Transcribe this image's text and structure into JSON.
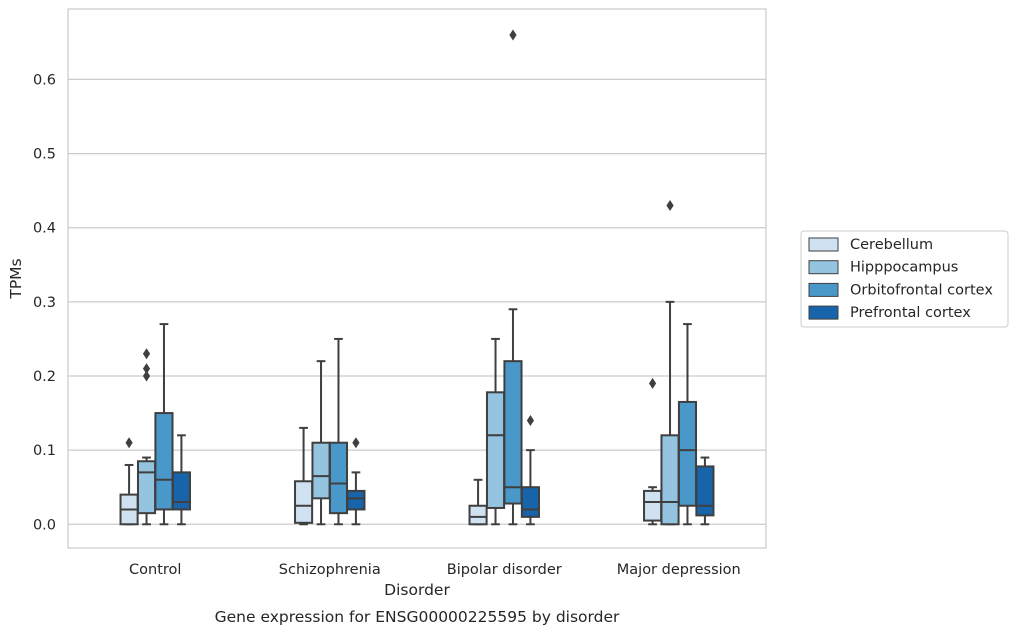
{
  "chart_data": {
    "type": "box",
    "title": "Gene expression for ENSG00000225595 by disorder",
    "xlabel": "Disorder",
    "ylabel": "TPMs",
    "ylim": [
      -0.032,
      0.695
    ],
    "yticks": [
      "0.0",
      "0.1",
      "0.2",
      "0.3",
      "0.4",
      "0.5",
      "0.6"
    ],
    "grid": "horizontal",
    "legend_position": "right",
    "categories": [
      "Control",
      "Schizophrenia",
      "Bipolar disorder",
      "Major depression"
    ],
    "series": [
      {
        "name": "Cerebellum",
        "color": "#d0e1f2",
        "boxes": [
          {
            "whislo": 0.0,
            "q1": 0.0,
            "med": 0.02,
            "q3": 0.04,
            "whishi": 0.08,
            "fliers": [
              0.11
            ]
          },
          {
            "whislo": 0.0,
            "q1": 0.002,
            "med": 0.025,
            "q3": 0.058,
            "whishi": 0.13,
            "fliers": []
          },
          {
            "whislo": 0.0,
            "q1": 0.0,
            "med": 0.01,
            "q3": 0.025,
            "whishi": 0.06,
            "fliers": []
          },
          {
            "whislo": 0.0,
            "q1": 0.005,
            "med": 0.03,
            "q3": 0.045,
            "whishi": 0.05,
            "fliers": [
              0.19
            ]
          }
        ]
      },
      {
        "name": "Hipppocampus",
        "color": "#94c4df",
        "boxes": [
          {
            "whislo": 0.0,
            "q1": 0.015,
            "med": 0.07,
            "q3": 0.085,
            "whishi": 0.09,
            "fliers": [
              0.2,
              0.21,
              0.23
            ]
          },
          {
            "whislo": 0.0,
            "q1": 0.035,
            "med": 0.065,
            "q3": 0.11,
            "whishi": 0.22,
            "fliers": []
          },
          {
            "whislo": 0.0,
            "q1": 0.022,
            "med": 0.12,
            "q3": 0.178,
            "whishi": 0.25,
            "fliers": []
          },
          {
            "whislo": 0.0,
            "q1": 0.0,
            "med": 0.03,
            "q3": 0.12,
            "whishi": 0.3,
            "fliers": [
              0.43
            ]
          }
        ]
      },
      {
        "name": "Orbitofrontal cortex",
        "color": "#4a98c9",
        "boxes": [
          {
            "whislo": 0.0,
            "q1": 0.02,
            "med": 0.06,
            "q3": 0.15,
            "whishi": 0.27,
            "fliers": []
          },
          {
            "whislo": 0.0,
            "q1": 0.015,
            "med": 0.055,
            "q3": 0.11,
            "whishi": 0.25,
            "fliers": []
          },
          {
            "whislo": 0.0,
            "q1": 0.028,
            "med": 0.05,
            "q3": 0.22,
            "whishi": 0.29,
            "fliers": [
              0.66
            ]
          },
          {
            "whislo": 0.0,
            "q1": 0.025,
            "med": 0.1,
            "q3": 0.165,
            "whishi": 0.27,
            "fliers": []
          }
        ]
      },
      {
        "name": "Prefrontal cortex",
        "color": "#1764ab",
        "boxes": [
          {
            "whislo": 0.0,
            "q1": 0.02,
            "med": 0.03,
            "q3": 0.07,
            "whishi": 0.12,
            "fliers": []
          },
          {
            "whislo": 0.0,
            "q1": 0.02,
            "med": 0.035,
            "q3": 0.045,
            "whishi": 0.07,
            "fliers": [
              0.11
            ]
          },
          {
            "whislo": 0.0,
            "q1": 0.01,
            "med": 0.02,
            "q3": 0.05,
            "whishi": 0.1,
            "fliers": [
              0.14
            ]
          },
          {
            "whislo": 0.0,
            "q1": 0.012,
            "med": 0.025,
            "q3": 0.078,
            "whishi": 0.09,
            "fliers": []
          }
        ]
      }
    ]
  }
}
